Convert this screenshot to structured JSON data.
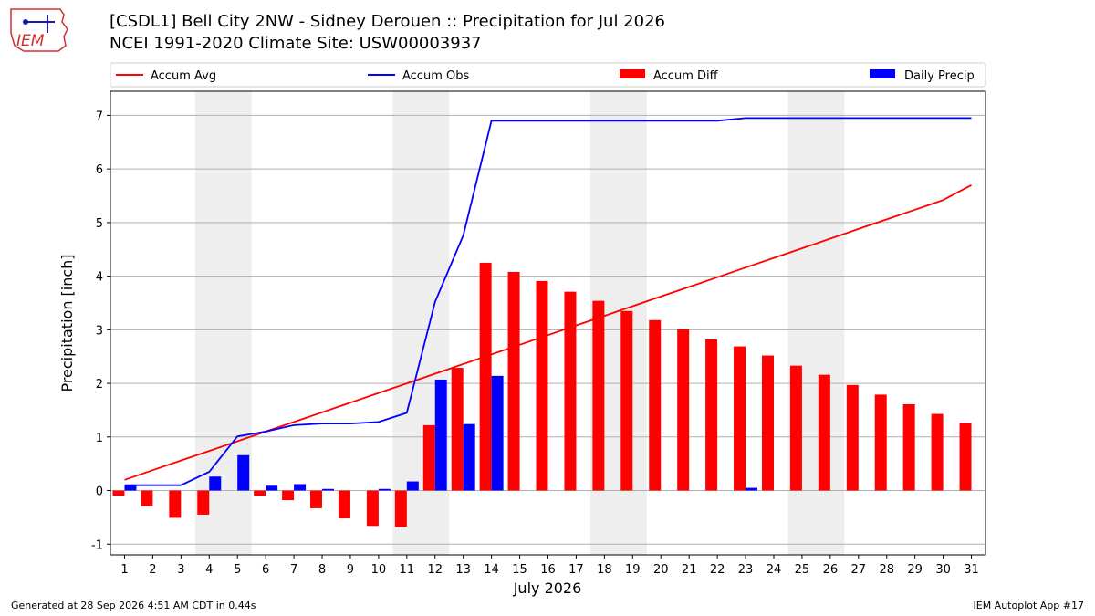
{
  "header": {
    "title_line1": "[CSDL1] Bell City 2NW - Sidney Derouen :: Precipitation for Jul 2026",
    "title_line2": "NCEI 1991-2020 Climate Site: USW00003937",
    "logo_text": "IEM"
  },
  "footer": {
    "generated": "Generated at 28 Sep 2026 4:51 AM CDT in 0.44s",
    "app": "IEM Autoplot App #17"
  },
  "chart_data": {
    "type": "bar",
    "xlabel": "July 2026",
    "ylabel": "Precipitation [inch]",
    "ylim": [
      -1.2,
      7.45
    ],
    "xlim": [
      0.5,
      31.5
    ],
    "yticks": [
      -1,
      0,
      1,
      2,
      3,
      4,
      5,
      6,
      7
    ],
    "grid": "horizontal",
    "legend_placement": "top",
    "weekend_shading": [
      [
        3.5,
        5.5
      ],
      [
        10.5,
        12.5
      ],
      [
        17.5,
        19.5
      ],
      [
        24.5,
        26.5
      ]
    ],
    "categories": [
      "1",
      "2",
      "3",
      "4",
      "5",
      "6",
      "7",
      "8",
      "9",
      "10",
      "11",
      "12",
      "13",
      "14",
      "15",
      "16",
      "17",
      "18",
      "19",
      "20",
      "21",
      "22",
      "23",
      "24",
      "25",
      "26",
      "27",
      "28",
      "29",
      "30",
      "31"
    ],
    "series": [
      {
        "name": "Accum Avg",
        "kind": "line",
        "color": "#ff0000",
        "values": [
          0.2,
          0.38,
          0.56,
          0.74,
          0.92,
          1.1,
          1.28,
          1.46,
          1.64,
          1.82,
          2.0,
          2.18,
          2.36,
          2.54,
          2.72,
          2.9,
          3.08,
          3.26,
          3.44,
          3.62,
          3.8,
          3.98,
          4.16,
          4.34,
          4.52,
          4.7,
          4.88,
          5.06,
          5.24,
          5.42,
          5.7
        ]
      },
      {
        "name": "Accum Obs",
        "kind": "line",
        "color": "#0000ff",
        "values": [
          0.1,
          0.1,
          0.1,
          0.35,
          1.01,
          1.1,
          1.22,
          1.25,
          1.25,
          1.28,
          1.45,
          3.52,
          4.76,
          6.9,
          6.9,
          6.9,
          6.9,
          6.9,
          6.9,
          6.9,
          6.9,
          6.9,
          6.95,
          6.95,
          6.95,
          6.95,
          6.95,
          6.95,
          6.95,
          6.95,
          6.95
        ]
      },
      {
        "name": "Accum Diff",
        "kind": "bar",
        "color": "#ff0000",
        "values": [
          -0.1,
          -0.29,
          -0.51,
          -0.45,
          0,
          -0.1,
          -0.18,
          -0.33,
          -0.52,
          -0.66,
          -0.68,
          1.22,
          2.29,
          4.25,
          4.08,
          3.91,
          3.71,
          3.54,
          3.35,
          3.18,
          3.01,
          2.82,
          2.69,
          2.52,
          2.33,
          2.16,
          1.97,
          1.79,
          1.61,
          1.43,
          1.26
        ]
      },
      {
        "name": "Daily Precip",
        "kind": "bar",
        "color": "#0000ff",
        "values": [
          0.1,
          0,
          0,
          0.26,
          0.66,
          0.09,
          0.12,
          0.03,
          0,
          0.03,
          0.17,
          2.07,
          1.24,
          2.14,
          0,
          0,
          0,
          0,
          0,
          0,
          0,
          0,
          0.05,
          0,
          0,
          0,
          0,
          0,
          0,
          0,
          0
        ]
      }
    ]
  }
}
